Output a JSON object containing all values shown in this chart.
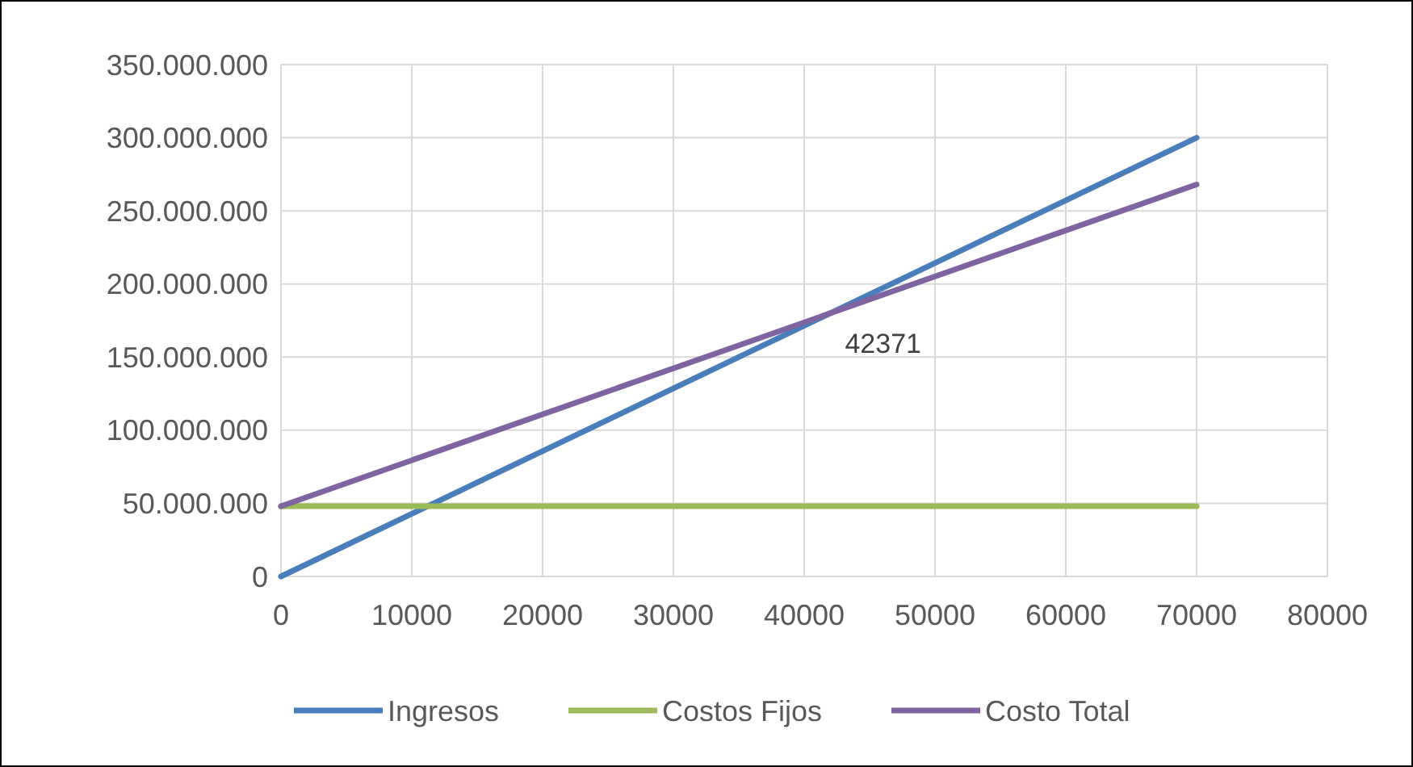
{
  "chart_data": {
    "type": "line",
    "x": [
      0,
      70000
    ],
    "series": [
      {
        "name": "Ingresos",
        "color": "#4a7ebb",
        "values": [
          0,
          300000000
        ]
      },
      {
        "name": "Costos Fijos",
        "color": "#9bbb59",
        "values": [
          48000000,
          48000000
        ]
      },
      {
        "name": "Costo Total",
        "color": "#8064a2",
        "values": [
          48000000,
          268000000
        ]
      }
    ],
    "xlim": [
      0,
      80000
    ],
    "xticks": [
      0,
      10000,
      20000,
      30000,
      40000,
      50000,
      60000,
      70000,
      80000
    ],
    "ylim": [
      0,
      350000000
    ],
    "yticks": [
      {
        "value": 0,
        "label": "0"
      },
      {
        "value": 50000000,
        "label": "50.000.000"
      },
      {
        "value": 100000000,
        "label": "100.000.000"
      },
      {
        "value": 150000000,
        "label": "150.000.000"
      },
      {
        "value": 200000000,
        "label": "200.000.000"
      },
      {
        "value": 250000000,
        "label": "250.000.000"
      },
      {
        "value": 300000000,
        "label": "300.000.000"
      },
      {
        "value": 350000000,
        "label": "350.000.000"
      }
    ],
    "annotations": [
      {
        "text": "42371",
        "x": 42371,
        "y": 181600000
      }
    ],
    "grid": true,
    "legend": "bottom",
    "marker": "none",
    "line_style": "solid"
  }
}
